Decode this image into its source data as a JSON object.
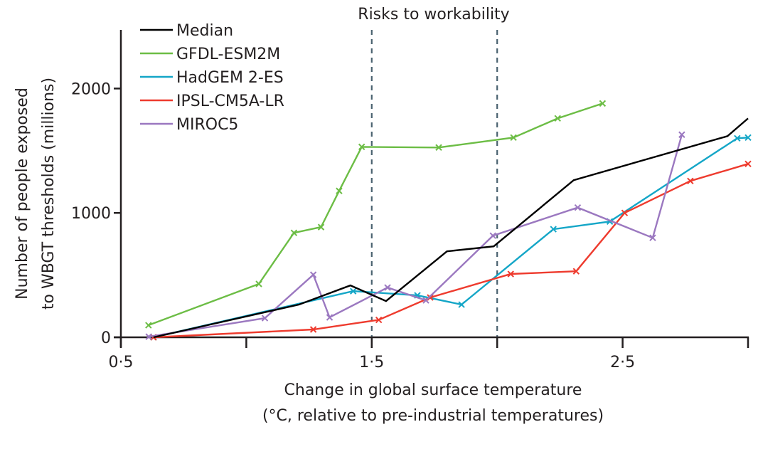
{
  "chart_data": {
    "type": "line",
    "title": "",
    "annotation": "Risks to workability",
    "xlabel": [
      "Change in global surface temperature",
      "(°C, relative to pre-industrial temperatures)"
    ],
    "ylabel": [
      "Number of people exposed",
      "to WBGT thresholds (millions)"
    ],
    "xlim": [
      0.5,
      3.0
    ],
    "ylim": [
      0,
      2500
    ],
    "x_ticks": [
      0.5,
      1.0,
      1.5,
      2.0,
      2.5,
      3.0
    ],
    "x_tick_labels": [
      "0·5",
      "",
      "1·5",
      "",
      "2·5",
      ""
    ],
    "y_ticks": [
      0,
      1000,
      2000
    ],
    "y_tick_labels": [
      "0",
      "1000",
      "2000"
    ],
    "reference_lines": [
      1.5,
      2.0
    ],
    "grid": false,
    "legend_position": "top-left",
    "series": [
      {
        "name": "Median",
        "color": "#000000",
        "markers": false,
        "points": [
          [
            0.63,
            0
          ],
          [
            1.21,
            263
          ],
          [
            1.415,
            417
          ],
          [
            1.557,
            291
          ],
          [
            1.8,
            691
          ],
          [
            1.986,
            731
          ],
          [
            2.305,
            1263
          ],
          [
            2.918,
            1617
          ],
          [
            3.0,
            1760
          ]
        ]
      },
      {
        "name": "GFDL-ESM2M",
        "color": "#6cbd45",
        "markers": true,
        "points": [
          [
            0.61,
            97
          ],
          [
            1.05,
            429
          ],
          [
            1.19,
            840
          ],
          [
            1.298,
            886
          ],
          [
            1.37,
            1177
          ],
          [
            1.46,
            1531
          ],
          [
            1.767,
            1526
          ],
          [
            2.065,
            1606
          ],
          [
            2.241,
            1760
          ],
          [
            2.42,
            1880
          ]
        ]
      },
      {
        "name": "HadGEM 2-ES",
        "color": "#14a6c7",
        "markers": true,
        "points": [
          [
            0.63,
            0
          ],
          [
            1.426,
            371
          ],
          [
            1.682,
            337
          ],
          [
            1.858,
            263
          ],
          [
            2.224,
            869
          ],
          [
            2.449,
            931
          ],
          [
            2.957,
            1600
          ],
          [
            3.0,
            1606
          ]
        ]
      },
      {
        "name": "IPSL-CM5A-LR",
        "color": "#ee3b2e",
        "markers": true,
        "points": [
          [
            0.63,
            0
          ],
          [
            1.267,
            63
          ],
          [
            1.528,
            140
          ],
          [
            1.733,
            320
          ],
          [
            2.054,
            509
          ],
          [
            2.315,
            531
          ],
          [
            2.508,
            1000
          ],
          [
            2.77,
            1257
          ],
          [
            3.0,
            1394
          ]
        ]
      },
      {
        "name": "MIROC5",
        "color": "#9b78c0",
        "markers": true,
        "points": [
          [
            0.611,
            5
          ],
          [
            1.074,
            154
          ],
          [
            1.267,
            503
          ],
          [
            1.332,
            160
          ],
          [
            1.563,
            400
          ],
          [
            1.716,
            297
          ],
          [
            1.983,
            817
          ],
          [
            2.321,
            1043
          ],
          [
            2.62,
            800
          ],
          [
            2.736,
            1629
          ]
        ]
      }
    ]
  }
}
